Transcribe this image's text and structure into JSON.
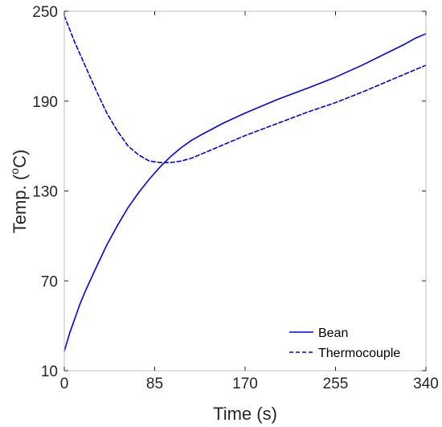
{
  "chart_data": {
    "type": "line",
    "xlabel": "Time (s)",
    "ylabel": "Temp. (",
    "ylabel_sup": "o",
    "ylabel_tail": "C)",
    "xlim": [
      0,
      340
    ],
    "ylim": [
      10,
      250
    ],
    "xticks": [
      0,
      85,
      170,
      255,
      340
    ],
    "yticks": [
      10,
      70,
      130,
      190,
      250
    ],
    "grid": false,
    "legend_position": "bottom-right",
    "colors": {
      "line": "#0000ff",
      "axes": "#262626",
      "box": "#bfbfbf"
    },
    "series": [
      {
        "name": "Bean",
        "style": "solid",
        "x": [
          0,
          5,
          10,
          15,
          20,
          30,
          40,
          50,
          60,
          70,
          80,
          85,
          90,
          100,
          110,
          120,
          130,
          150,
          170,
          200,
          230,
          255,
          280,
          300,
          320,
          330,
          340
        ],
        "y": [
          23,
          35,
          45,
          55,
          63.5,
          79,
          94,
          107,
          119,
          129,
          138,
          142,
          146,
          153,
          159,
          164,
          168,
          175.5,
          182,
          191,
          199,
          206,
          214,
          221,
          228,
          232,
          235
        ]
      },
      {
        "name": "Thermocouple",
        "style": "dashed",
        "x": [
          0,
          5,
          10,
          15,
          20,
          25,
          30,
          40,
          50,
          60,
          70,
          80,
          85,
          90,
          100,
          110,
          120,
          130,
          150,
          170,
          200,
          230,
          255,
          280,
          300,
          320,
          340
        ],
        "y": [
          247,
          238,
          229,
          221,
          213,
          205,
          197,
          182,
          170,
          160,
          154,
          150,
          149.5,
          149,
          149,
          150,
          152,
          155,
          161,
          167,
          175,
          183,
          189,
          196,
          202,
          208,
          214
        ]
      }
    ]
  }
}
